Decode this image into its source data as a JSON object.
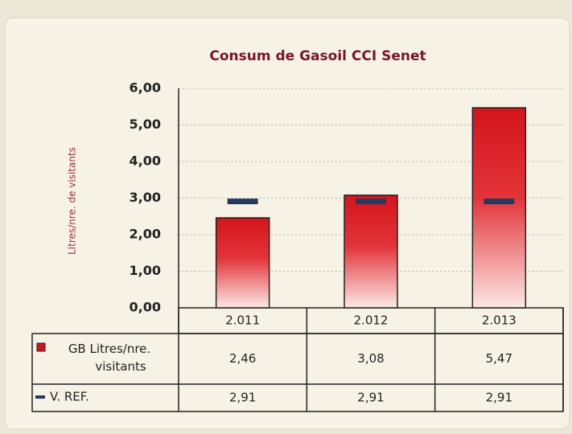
{
  "chart_data": {
    "type": "bar",
    "title": "Consum de Gasoil CCI Senet",
    "y_label": "Litres/nre. de visitants",
    "categories": [
      "2.011",
      "2.012",
      "2.013"
    ],
    "series": [
      {
        "name": "GB Litres/nre. visitants",
        "color": "#d4141c",
        "values": [
          2.46,
          3.08,
          5.47
        ],
        "value_labels": [
          "2,46",
          "3,08",
          "5,47"
        ]
      },
      {
        "name": "V. REF.",
        "color": "#243a5e",
        "values": [
          2.91,
          2.91,
          2.91
        ],
        "value_labels": [
          "2,91",
          "2,91",
          "2,91"
        ]
      }
    ],
    "ylim": [
      0,
      6
    ],
    "yticks": [
      {
        "value": 0,
        "label": "0,00"
      },
      {
        "value": 1,
        "label": "1,00"
      },
      {
        "value": 2,
        "label": "2,00"
      },
      {
        "value": 3,
        "label": "3,00"
      },
      {
        "value": 4,
        "label": "4,00"
      },
      {
        "value": 5,
        "label": "5,00"
      },
      {
        "value": 6,
        "label": "6,00"
      }
    ],
    "grid": true
  }
}
